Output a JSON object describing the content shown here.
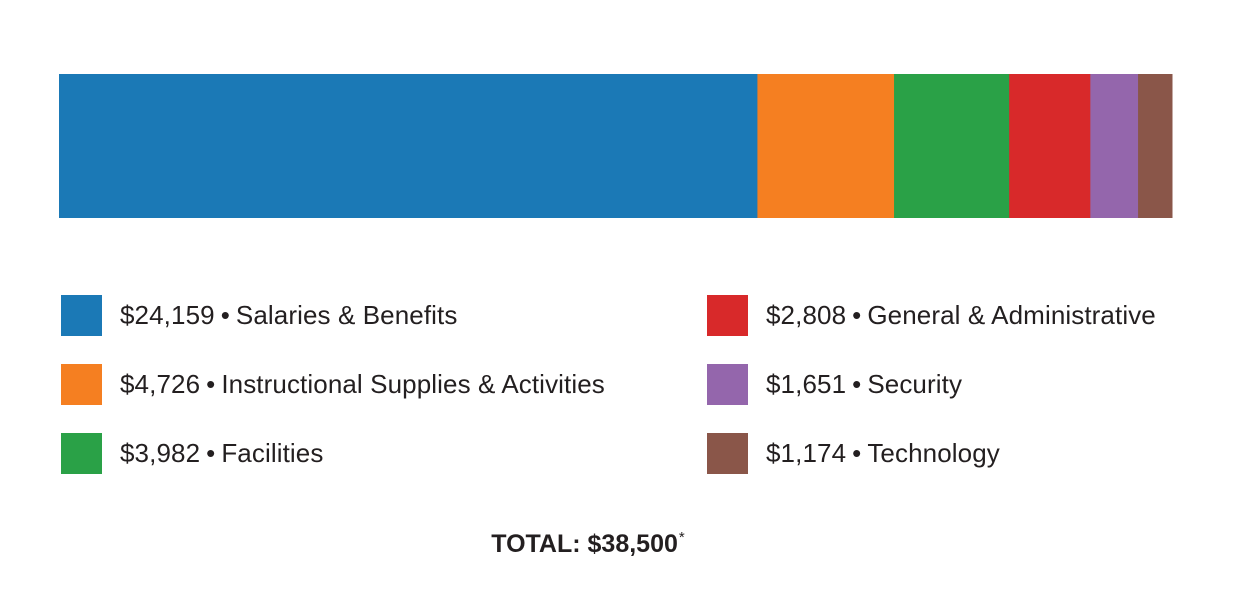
{
  "chart_data": {
    "type": "bar",
    "orientation": "horizontal-stacked",
    "categories": [
      "Salaries & Benefits",
      "Instructional Supplies & Activities",
      "Facilities",
      "General & Administrative",
      "Security",
      "Technology"
    ],
    "values": [
      24159,
      4726,
      3982,
      2808,
      1651,
      1174
    ],
    "value_labels": [
      "$24,159",
      "$4,726",
      "$3,982",
      "$2,808",
      "$1,651",
      "$1,174"
    ],
    "colors": [
      "#1b79b6",
      "#f57f21",
      "#2aa147",
      "#d8292a",
      "#9466ac",
      "#8a5649"
    ],
    "separator": "•",
    "total_label": "TOTAL: $38,500",
    "total_marker": "*",
    "legend_position": "bottom, two columns"
  }
}
